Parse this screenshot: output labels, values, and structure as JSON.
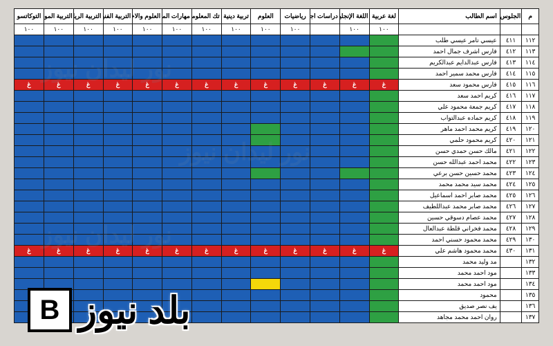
{
  "table": {
    "headers": {
      "m": "م",
      "seat": "الجلوس",
      "name": "اسم الطالب",
      "subjects": [
        "لغة عربية",
        "اللغة الإنجليزية",
        "دراسات اجتماعية",
        "رياضيات",
        "العلوم",
        "تربية دينية",
        "تك المعلومات",
        "مهارات المهنية",
        "العلوم والاختراع",
        "التربية الفنية",
        "التربية الرياضية",
        "التربية الموسيقية",
        "التوكاتسو"
      ]
    },
    "max_marks": [
      "١٠٠",
      "١٠٠",
      "",
      "١٠٠",
      "١٠٠",
      "١٠٠",
      "١٠٠",
      "١٠٠",
      "١٠٠",
      "١٠٠",
      "١٠٠",
      "١٠٠",
      "١٠٠"
    ],
    "rows": [
      {
        "m": "١١٢",
        "seat": "٤١١",
        "name": "عيسي تامر عيسي طلب",
        "cells": [
          "g",
          "b",
          "b",
          "b",
          "b",
          "b",
          "b",
          "b",
          "b",
          "b",
          "b",
          "b",
          "b"
        ]
      },
      {
        "m": "١١٣",
        "seat": "٤١٢",
        "name": "فارس اشرف جمال احمد",
        "cells": [
          "g",
          "g",
          "b",
          "b",
          "b",
          "b",
          "b",
          "b",
          "b",
          "b",
          "b",
          "b",
          "b"
        ]
      },
      {
        "m": "١١٤",
        "seat": "٤١٣",
        "name": "فارس عبدالدايم عبدالكريم",
        "cells": [
          "g",
          "b",
          "b",
          "b",
          "b",
          "b",
          "b",
          "b",
          "b",
          "b",
          "b",
          "b",
          "b"
        ]
      },
      {
        "m": "١١٥",
        "seat": "٤١٤",
        "name": "فارس محمد سمير احمد",
        "cells": [
          "g",
          "b",
          "b",
          "b",
          "b",
          "b",
          "b",
          "b",
          "b",
          "b",
          "b",
          "b",
          "b"
        ]
      },
      {
        "m": "١١٦",
        "seat": "٤١٥",
        "name": "فارس محمود سعد",
        "cells": [
          "r",
          "r",
          "r",
          "r",
          "r",
          "r",
          "r",
          "r",
          "r",
          "r",
          "r",
          "r",
          "r"
        ]
      },
      {
        "m": "١١٧",
        "seat": "٤١٦",
        "name": "كريم احمد سعد",
        "cells": [
          "g",
          "b",
          "b",
          "b",
          "b",
          "b",
          "b",
          "b",
          "b",
          "b",
          "b",
          "b",
          "b"
        ]
      },
      {
        "m": "١١٨",
        "seat": "٤١٧",
        "name": "كريم جمعة محمود علي",
        "cells": [
          "g",
          "b",
          "b",
          "b",
          "b",
          "b",
          "b",
          "b",
          "b",
          "b",
          "b",
          "b",
          "b"
        ]
      },
      {
        "m": "١١٩",
        "seat": "٤١٨",
        "name": "كريم حماده عبدالتواب",
        "cells": [
          "g",
          "b",
          "b",
          "b",
          "b",
          "b",
          "b",
          "b",
          "b",
          "b",
          "b",
          "b",
          "b"
        ]
      },
      {
        "m": "١٢٠",
        "seat": "٤١٩",
        "name": "كريم محمد احمد ماهر",
        "cells": [
          "g",
          "b",
          "b",
          "b",
          "g",
          "b",
          "b",
          "b",
          "b",
          "b",
          "b",
          "b",
          "b"
        ]
      },
      {
        "m": "١٢١",
        "seat": "٤٢٠",
        "name": "كريم محمود حلمي",
        "cells": [
          "g",
          "b",
          "b",
          "b",
          "g",
          "b",
          "b",
          "b",
          "b",
          "b",
          "b",
          "b",
          "b"
        ]
      },
      {
        "m": "١٢٢",
        "seat": "٤٢١",
        "name": "مالك حسن حمدي حسن",
        "cells": [
          "g",
          "b",
          "b",
          "b",
          "b",
          "b",
          "b",
          "b",
          "b",
          "b",
          "b",
          "b",
          "b"
        ]
      },
      {
        "m": "١٢٣",
        "seat": "٤٢٢",
        "name": "محمد احمد عبدالله حسن",
        "cells": [
          "g",
          "b",
          "b",
          "b",
          "b",
          "b",
          "b",
          "b",
          "b",
          "b",
          "b",
          "b",
          "b"
        ]
      },
      {
        "m": "١٢٤",
        "seat": "٤٢٣",
        "name": "محمد حسين حسن برعي",
        "cells": [
          "g",
          "g",
          "b",
          "b",
          "g",
          "b",
          "b",
          "b",
          "b",
          "b",
          "b",
          "b",
          "b"
        ]
      },
      {
        "m": "١٢٥",
        "seat": "٤٢٤",
        "name": "محمد سيد محمد محمد",
        "cells": [
          "g",
          "b",
          "b",
          "b",
          "b",
          "b",
          "b",
          "b",
          "b",
          "b",
          "b",
          "b",
          "b"
        ]
      },
      {
        "m": "١٢٦",
        "seat": "٤٢٥",
        "name": "محمد صابر احمد اسماعيل",
        "cells": [
          "g",
          "b",
          "b",
          "b",
          "b",
          "b",
          "b",
          "b",
          "b",
          "b",
          "b",
          "b",
          "b"
        ]
      },
      {
        "m": "١٢٧",
        "seat": "٤٢٦",
        "name": "محمد صابر محمد عبداللطيف",
        "cells": [
          "g",
          "b",
          "b",
          "b",
          "b",
          "b",
          "b",
          "b",
          "b",
          "b",
          "b",
          "b",
          "b"
        ]
      },
      {
        "m": "١٢٨",
        "seat": "٤٢٧",
        "name": "محمد عصام دسوقي حسين",
        "cells": [
          "g",
          "b",
          "b",
          "b",
          "b",
          "b",
          "b",
          "b",
          "b",
          "b",
          "b",
          "b",
          "b"
        ]
      },
      {
        "m": "١٢٩",
        "seat": "٤٢٨",
        "name": "محمد فخراني قلطة عبدالعال",
        "cells": [
          "g",
          "b",
          "b",
          "b",
          "b",
          "b",
          "b",
          "b",
          "b",
          "b",
          "b",
          "b",
          "b"
        ]
      },
      {
        "m": "١٣٠",
        "seat": "٤٢٩",
        "name": "محمد محمود حسني احمد",
        "cells": [
          "g",
          "b",
          "b",
          "b",
          "b",
          "b",
          "b",
          "b",
          "b",
          "b",
          "b",
          "b",
          "b"
        ]
      },
      {
        "m": "١٣١",
        "seat": "٤٣٠",
        "name": "محمد محمود هاشم علي",
        "cells": [
          "r",
          "r",
          "r",
          "r",
          "r",
          "r",
          "r",
          "r",
          "r",
          "r",
          "r",
          "r",
          "r"
        ]
      },
      {
        "m": "١٣٢",
        "seat": "",
        "name": "مد وليد محمد",
        "cells": [
          "g",
          "b",
          "b",
          "b",
          "b",
          "b",
          "b",
          "b",
          "b",
          "b",
          "b",
          "b",
          "b"
        ]
      },
      {
        "m": "١٣٣",
        "seat": "",
        "name": "مود احمد محمد",
        "cells": [
          "g",
          "b",
          "b",
          "b",
          "b",
          "b",
          "b",
          "b",
          "b",
          "b",
          "b",
          "b",
          "b"
        ]
      },
      {
        "m": "١٣٤",
        "seat": "",
        "name": "مود احمد محمد",
        "cells": [
          "g",
          "b",
          "b",
          "b",
          "y",
          "b",
          "b",
          "b",
          "b",
          "b",
          "b",
          "b",
          "b"
        ]
      },
      {
        "m": "١٣٥",
        "seat": "",
        "name": "محمود",
        "cells": [
          "g",
          "b",
          "b",
          "b",
          "b",
          "b",
          "b",
          "b",
          "b",
          "b",
          "b",
          "b",
          "b"
        ]
      },
      {
        "m": "١٣٦",
        "seat": "",
        "name": "يف نصر صديق",
        "cells": [
          "g",
          "b",
          "b",
          "b",
          "b",
          "b",
          "b",
          "b",
          "b",
          "b",
          "b",
          "b",
          "b"
        ]
      },
      {
        "m": "١٣٧",
        "seat": "",
        "name": "روان احمد محمد مجاهد",
        "cells": [
          "g",
          "b",
          "b",
          "b",
          "b",
          "b",
          "b",
          "b",
          "b",
          "b",
          "b",
          "b",
          "b"
        ]
      }
    ],
    "absent_mark": "غ",
    "colors": {
      "blue": "#1e5fb5",
      "green": "#2ea043",
      "yellow": "#f5d80a",
      "red": "#d62020",
      "border": "#1a1a1a",
      "bg": "#d8d5d0"
    }
  },
  "overlay": {
    "text": "بلد نيوز",
    "logo_letter": "B"
  },
  "watermark_text": "نور ليدان نيوز"
}
